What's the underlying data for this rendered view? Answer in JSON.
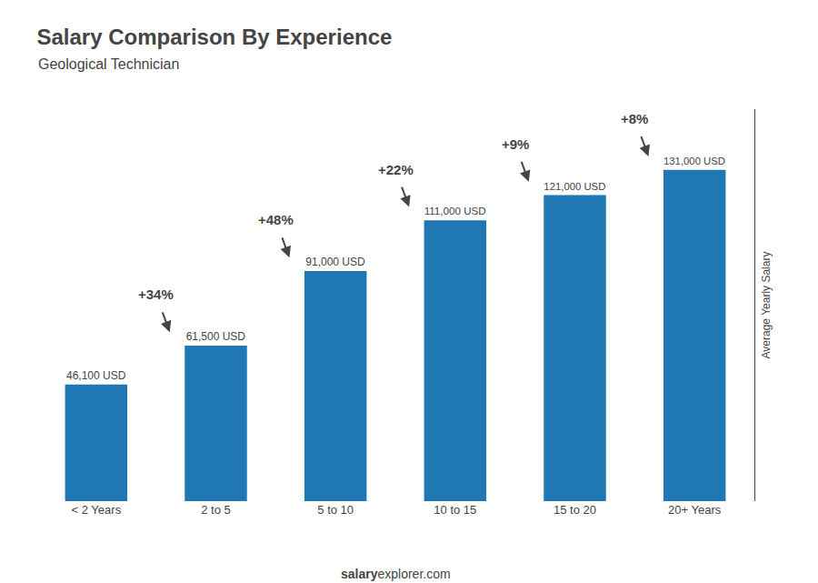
{
  "chart_data": {
    "type": "bar",
    "title": "Salary Comparison By Experience",
    "subtitle": "Geological Technician",
    "categories": [
      "< 2 Years",
      "2 to 5",
      "5 to 10",
      "10 to 15",
      "15 to 20",
      "20+ Years"
    ],
    "values": [
      46100,
      61500,
      91000,
      111000,
      121000,
      131000
    ],
    "value_labels": [
      "46,100 USD",
      "61,500 USD",
      "91,000 USD",
      "111,000 USD",
      "121,000 USD",
      "131,000 USD"
    ],
    "data_labels": true,
    "ylabel": "Average Yearly Salary",
    "ylim": [
      0,
      155000
    ],
    "grid": false,
    "tick_labels": "x",
    "annotations": [
      {
        "text": "+34%",
        "from": "< 2 Years",
        "to": "2 to 5"
      },
      {
        "text": "+48%",
        "from": "2 to 5",
        "to": "5 to 10"
      },
      {
        "text": "+22%",
        "from": "5 to 10",
        "to": "10 to 15"
      },
      {
        "text": "+9%",
        "from": "10 to 15",
        "to": "15 to 20"
      },
      {
        "text": "+8%",
        "from": "15 to 20",
        "to": "20+ Years"
      }
    ],
    "footer": [
      "salary",
      "explorer.com"
    ]
  }
}
